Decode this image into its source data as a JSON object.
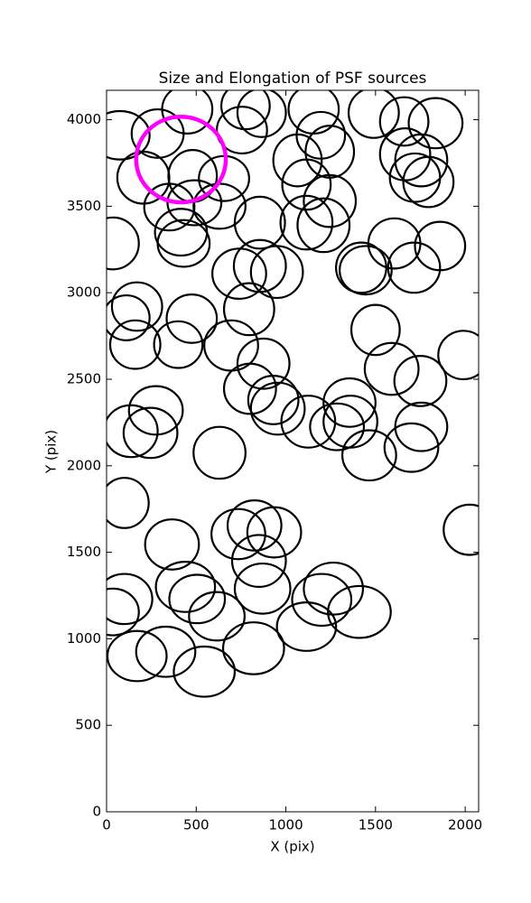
{
  "chart_data": {
    "type": "ellipse",
    "title": "Size and Elongation of PSF sources",
    "x_label": "X (pix)",
    "y_label": "Y (pix)",
    "xlim": [
      0,
      2075
    ],
    "ylim": [
      0,
      4170
    ],
    "xticks": [
      0,
      500,
      1000,
      1500,
      2000
    ],
    "yticks": [
      0,
      500,
      1000,
      1500,
      2000,
      2500,
      3000,
      3500,
      4000
    ],
    "series": [
      {
        "color": "#000000",
        "x": [
          75,
          285,
          450,
          775,
          865,
          755,
          1155,
          1195,
          1490,
          1660,
          1835,
          1065,
          1245,
          205,
          480,
          655,
          350,
          490,
          630,
          415,
          430,
          855,
          1115,
          1210,
          1245,
          1115,
          1665,
          1755,
          1720,
          1795,
          35,
          740,
          855,
          950,
          1420,
          1445,
          1605,
          1715,
          1860,
          170,
          110,
          160,
          400,
          475,
          795,
          695,
          875,
          800,
          930,
          955,
          1125,
          1355,
          1285,
          1360,
          1465,
          1500,
          1590,
          1750,
          1990,
          1755,
          1700,
          275,
          135,
          245,
          630,
          100,
          2025,
          365,
          735,
          825,
          935,
          850,
          870,
          440,
          505,
          615,
          100,
          35,
          170,
          330,
          545,
          820,
          1115,
          1200,
          1265,
          1410
        ],
        "values": [
          3910,
          3920,
          4060,
          4080,
          4040,
          3940,
          4060,
          3910,
          4040,
          3990,
          3980,
          3765,
          3815,
          3665,
          3675,
          3660,
          3495,
          3520,
          3500,
          3350,
          3285,
          3405,
          3405,
          3390,
          3530,
          3625,
          3800,
          3765,
          3665,
          3640,
          3285,
          3110,
          3155,
          3120,
          3145,
          3130,
          3285,
          3145,
          3270,
          2920,
          2855,
          2700,
          2700,
          2850,
          2905,
          2695,
          2590,
          2445,
          2380,
          2330,
          2255,
          2365,
          2225,
          2255,
          2060,
          2785,
          2560,
          2490,
          2640,
          2225,
          2105,
          2320,
          2200,
          2190,
          2075,
          1785,
          1630,
          1545,
          1605,
          1655,
          1615,
          1450,
          1290,
          1300,
          1230,
          1130,
          1230,
          1155,
          900,
          925,
          810,
          945,
          1070,
          1225,
          1290,
          1155
        ],
        "widths": [
          330,
          290,
          280,
          270,
          270,
          280,
          280,
          270,
          280,
          270,
          300,
          270,
          270,
          290,
          270,
          280,
          280,
          300,
          290,
          290,
          290,
          280,
          290,
          290,
          290,
          270,
          280,
          290,
          280,
          280,
          290,
          300,
          290,
          290,
          280,
          290,
          290,
          290,
          280,
          280,
          260,
          280,
          270,
          280,
          280,
          300,
          290,
          290,
          280,
          300,
          300,
          290,
          300,
          300,
          300,
          270,
          300,
          290,
          280,
          290,
          300,
          300,
          300,
          300,
          290,
          270,
          290,
          300,
          300,
          300,
          300,
          300,
          310,
          330,
          310,
          310,
          310,
          290,
          330,
          330,
          340,
          340,
          330,
          330,
          330,
          350
        ],
        "heights": [
          280,
          280,
          280,
          270,
          280,
          270,
          280,
          270,
          290,
          280,
          290,
          300,
          300,
          300,
          300,
          260,
          270,
          260,
          260,
          270,
          270,
          300,
          310,
          310,
          300,
          290,
          300,
          300,
          280,
          290,
          300,
          290,
          300,
          300,
          290,
          280,
          290,
          290,
          280,
          280,
          260,
          280,
          270,
          280,
          300,
          290,
          290,
          290,
          280,
          300,
          300,
          280,
          270,
          300,
          290,
          290,
          300,
          290,
          280,
          280,
          280,
          280,
          300,
          290,
          300,
          290,
          290,
          290,
          290,
          290,
          290,
          300,
          290,
          290,
          280,
          280,
          290,
          270,
          290,
          290,
          290,
          300,
          280,
          300,
          300,
          300
        ]
      },
      {
        "color": "#ff00ff",
        "x": [
          415
        ],
        "values": [
          3770
        ],
        "widths": [
          500
        ],
        "heights": [
          495
        ]
      }
    ]
  }
}
